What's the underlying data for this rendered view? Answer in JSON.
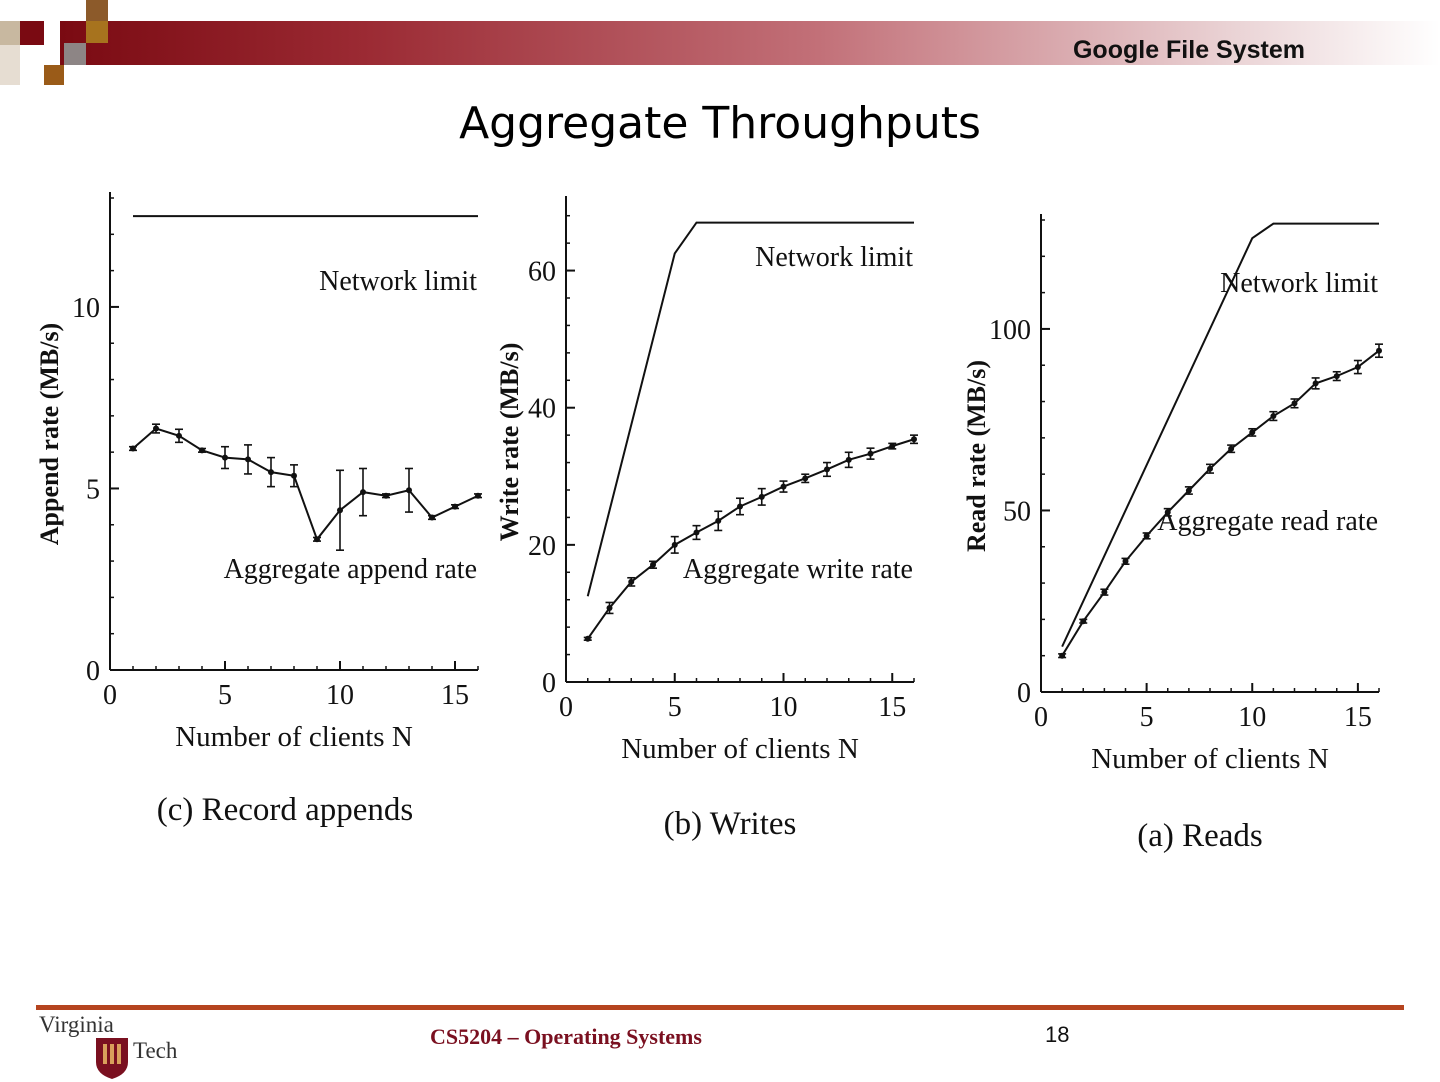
{
  "header": {
    "title": "Google File System"
  },
  "slide": {
    "title": "Aggregate Throughputs"
  },
  "footer": {
    "course": "CS5204 – Operating Systems",
    "page": "18",
    "logo_line1": "Virginia",
    "logo_line2": "Tech"
  },
  "colors": {
    "brand": "#7a0a12",
    "accent": "#b5441f",
    "footer_text": "#7a1020"
  },
  "chart_data": [
    {
      "type": "line",
      "title": "(c) Record appends",
      "xlabel": "Number of clients N",
      "ylabel": "Append rate (MB/s)",
      "xlim": [
        0,
        16
      ],
      "ylim": [
        0,
        13
      ],
      "xticks": [
        0,
        5,
        10,
        15
      ],
      "yticks": [
        0,
        5,
        10
      ],
      "series": [
        {
          "name": "Network limit",
          "x": [
            1,
            16
          ],
          "y": [
            12.5,
            12.5
          ]
        },
        {
          "name": "Aggregate append rate",
          "x": [
            1,
            2,
            3,
            4,
            5,
            6,
            7,
            8,
            9,
            10,
            11,
            12,
            13,
            14,
            15,
            16
          ],
          "y": [
            6.1,
            6.65,
            6.45,
            6.05,
            5.85,
            5.8,
            5.45,
            5.35,
            3.6,
            4.4,
            4.9,
            4.8,
            4.95,
            4.2,
            4.5,
            4.8
          ],
          "err": [
            0.05,
            0.12,
            0.18,
            0.05,
            0.3,
            0.4,
            0.4,
            0.3,
            0.05,
            1.1,
            0.65,
            0.05,
            0.6,
            0.05,
            0.05,
            0.05
          ]
        }
      ]
    },
    {
      "type": "line",
      "title": "(b) Writes",
      "xlabel": "Number of clients N",
      "ylabel": "Write rate (MB/s)",
      "xlim": [
        0,
        16
      ],
      "ylim": [
        0,
        70
      ],
      "xticks": [
        0,
        5,
        10,
        15
      ],
      "yticks": [
        0,
        20,
        40,
        60
      ],
      "series": [
        {
          "name": "Network limit",
          "x": [
            1,
            5,
            6,
            16
          ],
          "y": [
            12.5,
            62.5,
            67,
            67
          ]
        },
        {
          "name": "Aggregate write rate",
          "x": [
            1,
            2,
            3,
            4,
            5,
            6,
            7,
            8,
            9,
            10,
            11,
            12,
            13,
            14,
            15,
            16
          ],
          "y": [
            6.3,
            10.8,
            14.6,
            17.1,
            20.0,
            21.8,
            23.5,
            25.6,
            27.0,
            28.5,
            29.7,
            31.0,
            32.4,
            33.3,
            34.4,
            35.4
          ],
          "err": [
            0.2,
            0.8,
            0.6,
            0.5,
            1.2,
            1.0,
            1.4,
            1.2,
            1.2,
            0.8,
            0.6,
            1.0,
            1.1,
            0.8,
            0.4,
            0.6
          ]
        }
      ]
    },
    {
      "type": "line",
      "title": "(a) Reads",
      "xlabel": "Number of clients N",
      "ylabel": "Read rate (MB/s)",
      "xlim": [
        0,
        16
      ],
      "ylim": [
        0,
        130
      ],
      "xticks": [
        0,
        5,
        10,
        15
      ],
      "yticks": [
        0,
        50,
        100
      ],
      "series": [
        {
          "name": "Network limit",
          "x": [
            1,
            10,
            11,
            16
          ],
          "y": [
            12.5,
            125,
            129,
            129
          ]
        },
        {
          "name": "Aggregate read rate",
          "x": [
            1,
            2,
            3,
            4,
            5,
            6,
            7,
            8,
            9,
            10,
            11,
            12,
            13,
            14,
            15,
            16
          ],
          "y": [
            10,
            19.5,
            27.5,
            36,
            43,
            49.5,
            55.5,
            61.5,
            67,
            71.5,
            76,
            79.5,
            85,
            87,
            89.5,
            94
          ],
          "err": [
            0.5,
            0.5,
            0.8,
            0.8,
            0.8,
            1.0,
            1.0,
            1.2,
            1.0,
            1.0,
            1.2,
            1.2,
            1.5,
            1.2,
            1.8,
            1.8
          ]
        }
      ]
    }
  ]
}
